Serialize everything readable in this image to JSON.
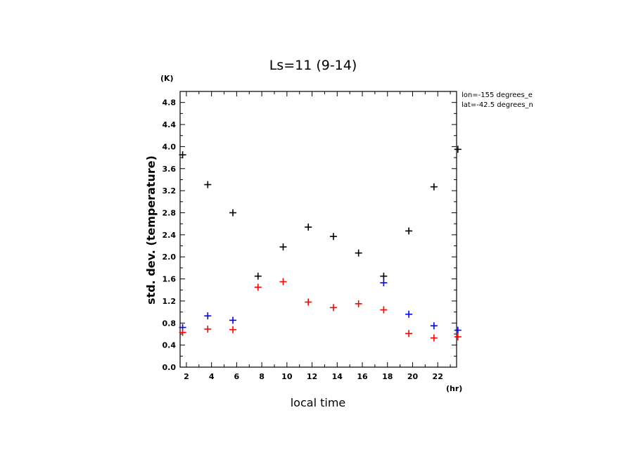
{
  "chart_data": {
    "type": "scatter",
    "title": "Ls=11 (9-14)",
    "xlabel": "local time",
    "ylabel": "std. dev. (temperature)",
    "x_unit": "(hr)",
    "y_unit": "(K)",
    "xlim": [
      1.5,
      23.5
    ],
    "ylim": [
      0.0,
      5.0
    ],
    "xticks": [
      "2",
      "4",
      "6",
      "8",
      "10",
      "12",
      "14",
      "16",
      "18",
      "20",
      "22"
    ],
    "yticks": [
      "0.0",
      "0.4",
      "0.8",
      "1.2",
      "1.6",
      "2.0",
      "2.4",
      "2.8",
      "3.2",
      "3.6",
      "4.0",
      "4.4",
      "4.8"
    ],
    "annotations": [
      "lon=-155 degrees_e",
      "lat=-42.5 degrees_n"
    ],
    "grid": false,
    "marker": "+",
    "series": [
      {
        "color": "#000000",
        "x": [
          1.7,
          3.7,
          5.7,
          7.7,
          9.7,
          11.7,
          13.7,
          15.7,
          17.7,
          19.7,
          21.7,
          23.6
        ],
        "y": [
          3.85,
          3.31,
          2.8,
          1.65,
          2.18,
          2.54,
          2.37,
          2.07,
          1.65,
          2.47,
          3.27,
          3.95
        ]
      },
      {
        "color": "#0000ff",
        "x": [
          1.7,
          3.7,
          5.7,
          17.7,
          19.7,
          21.7,
          23.6
        ],
        "y": [
          0.72,
          0.93,
          0.85,
          1.53,
          0.96,
          0.75,
          0.67
        ]
      },
      {
        "color": "#ff0000",
        "x": [
          1.7,
          3.7,
          5.7,
          7.7,
          9.7,
          11.7,
          13.7,
          15.7,
          17.7,
          19.7,
          21.7,
          23.6
        ],
        "y": [
          0.63,
          0.69,
          0.68,
          1.45,
          1.55,
          1.18,
          1.08,
          1.15,
          1.04,
          0.61,
          0.53,
          0.55
        ]
      }
    ]
  }
}
